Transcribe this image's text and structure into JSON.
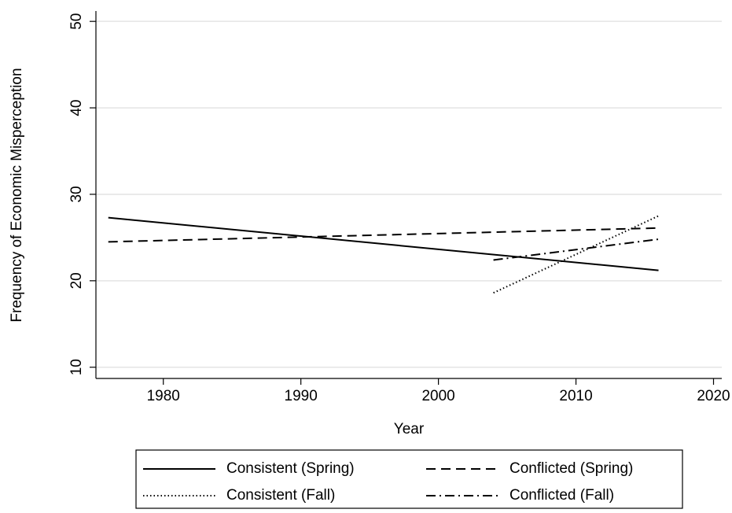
{
  "chart_data": {
    "type": "line",
    "xlabel": "Year",
    "ylabel": "Frequency of Economic Misperception",
    "xlim": [
      1975.1,
      2020.6
    ],
    "xticks": [
      1980,
      1990,
      2000,
      2010,
      2020
    ],
    "ylim": [
      8.7,
      51.2
    ],
    "yticks": [
      10,
      20,
      30,
      40,
      50
    ],
    "grid": true,
    "series": [
      {
        "name": "Consistent (Spring)",
        "color": "#000000",
        "dash": "solid",
        "x": [
          1976,
          2016
        ],
        "values": [
          27.3,
          21.2
        ]
      },
      {
        "name": "Conflicted (Spring)",
        "color": "#000000",
        "dash": "dash",
        "x": [
          1976,
          2016
        ],
        "values": [
          24.5,
          26.1
        ]
      },
      {
        "name": "Consistent (Fall)",
        "color": "#000000",
        "dash": "dot",
        "x": [
          2004,
          2016
        ],
        "values": [
          18.6,
          27.5
        ]
      },
      {
        "name": "Conflicted (Fall)",
        "color": "#000000",
        "dash": "dashdot",
        "x": [
          2004,
          2016
        ],
        "values": [
          22.4,
          24.8
        ]
      }
    ]
  }
}
